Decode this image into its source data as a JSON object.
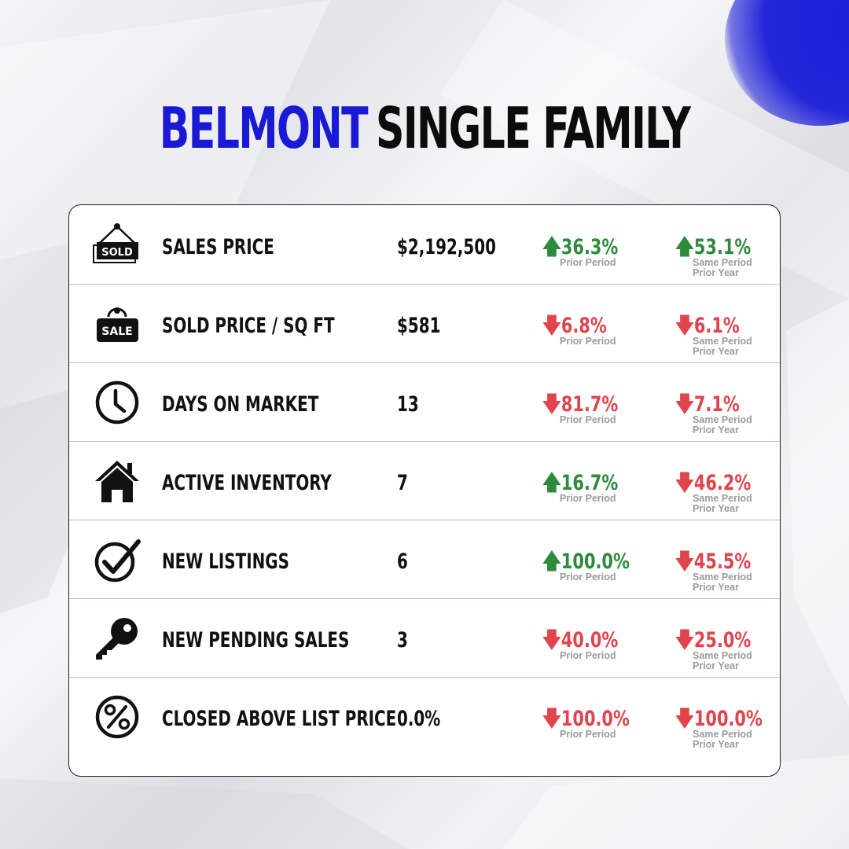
{
  "title": {
    "city": "BELMONT",
    "segment": "SINGLE FAMILY"
  },
  "accent_color": "#1a1ad6",
  "up_color": "#2e8b3e",
  "down_color": "#e0444c",
  "rows": [
    {
      "icon": "sold-sign-icon",
      "label": "SALES PRICE",
      "value": "$2,192,500",
      "prior_period": {
        "direction": "up",
        "arrow": "🡅",
        "pct": "36.3%",
        "caption": "Prior Period"
      },
      "prior_year": {
        "direction": "up",
        "arrow": "🡅",
        "pct": "53.1%",
        "caption": "Same Period\nPrior Year"
      }
    },
    {
      "icon": "sale-sign-icon",
      "label": "SOLD PRICE / SQ FT",
      "value": "$581",
      "prior_period": {
        "direction": "down",
        "arrow": "🡇",
        "pct": "6.8%",
        "caption": "Prior Period"
      },
      "prior_year": {
        "direction": "down",
        "arrow": "🡇",
        "pct": "6.1%",
        "caption": "Same Period\nPrior Year"
      }
    },
    {
      "icon": "clock-icon",
      "label": "DAYS ON MARKET",
      "value": "13",
      "prior_period": {
        "direction": "down",
        "arrow": "🡇",
        "pct": "81.7%",
        "caption": "Prior Period"
      },
      "prior_year": {
        "direction": "down",
        "arrow": "🡇",
        "pct": "7.1%",
        "caption": "Same Period\nPrior Year"
      }
    },
    {
      "icon": "house-icon",
      "label": "ACTIVE INVENTORY",
      "value": "7",
      "prior_period": {
        "direction": "up",
        "arrow": "🡅",
        "pct": "16.7%",
        "caption": "Prior Period"
      },
      "prior_year": {
        "direction": "down",
        "arrow": "🡇",
        "pct": "46.2%",
        "caption": "Same Period\nPrior Year"
      }
    },
    {
      "icon": "checkmark-circle-icon",
      "label": "NEW LISTINGS",
      "value": "6",
      "prior_period": {
        "direction": "up",
        "arrow": "🡅",
        "pct": "100.0%",
        "caption": "Prior Period"
      },
      "prior_year": {
        "direction": "down",
        "arrow": "🡇",
        "pct": "45.5%",
        "caption": "Same Period\nPrior Year"
      }
    },
    {
      "icon": "key-icon",
      "label": "NEW PENDING SALES",
      "value": "3",
      "prior_period": {
        "direction": "down",
        "arrow": "🡇",
        "pct": "40.0%",
        "caption": "Prior Period"
      },
      "prior_year": {
        "direction": "down",
        "arrow": "🡇",
        "pct": "25.0%",
        "caption": "Same Period\nPrior Year"
      }
    },
    {
      "icon": "percent-circle-icon",
      "label": "CLOSED ABOVE LIST PRICE",
      "value": "0.0%",
      "prior_period": {
        "direction": "down",
        "arrow": "🡇",
        "pct": "100.0%",
        "caption": "Prior Period"
      },
      "prior_year": {
        "direction": "down",
        "arrow": "🡇",
        "pct": "100.0%",
        "caption": "Same Period\nPrior Year"
      }
    }
  ]
}
